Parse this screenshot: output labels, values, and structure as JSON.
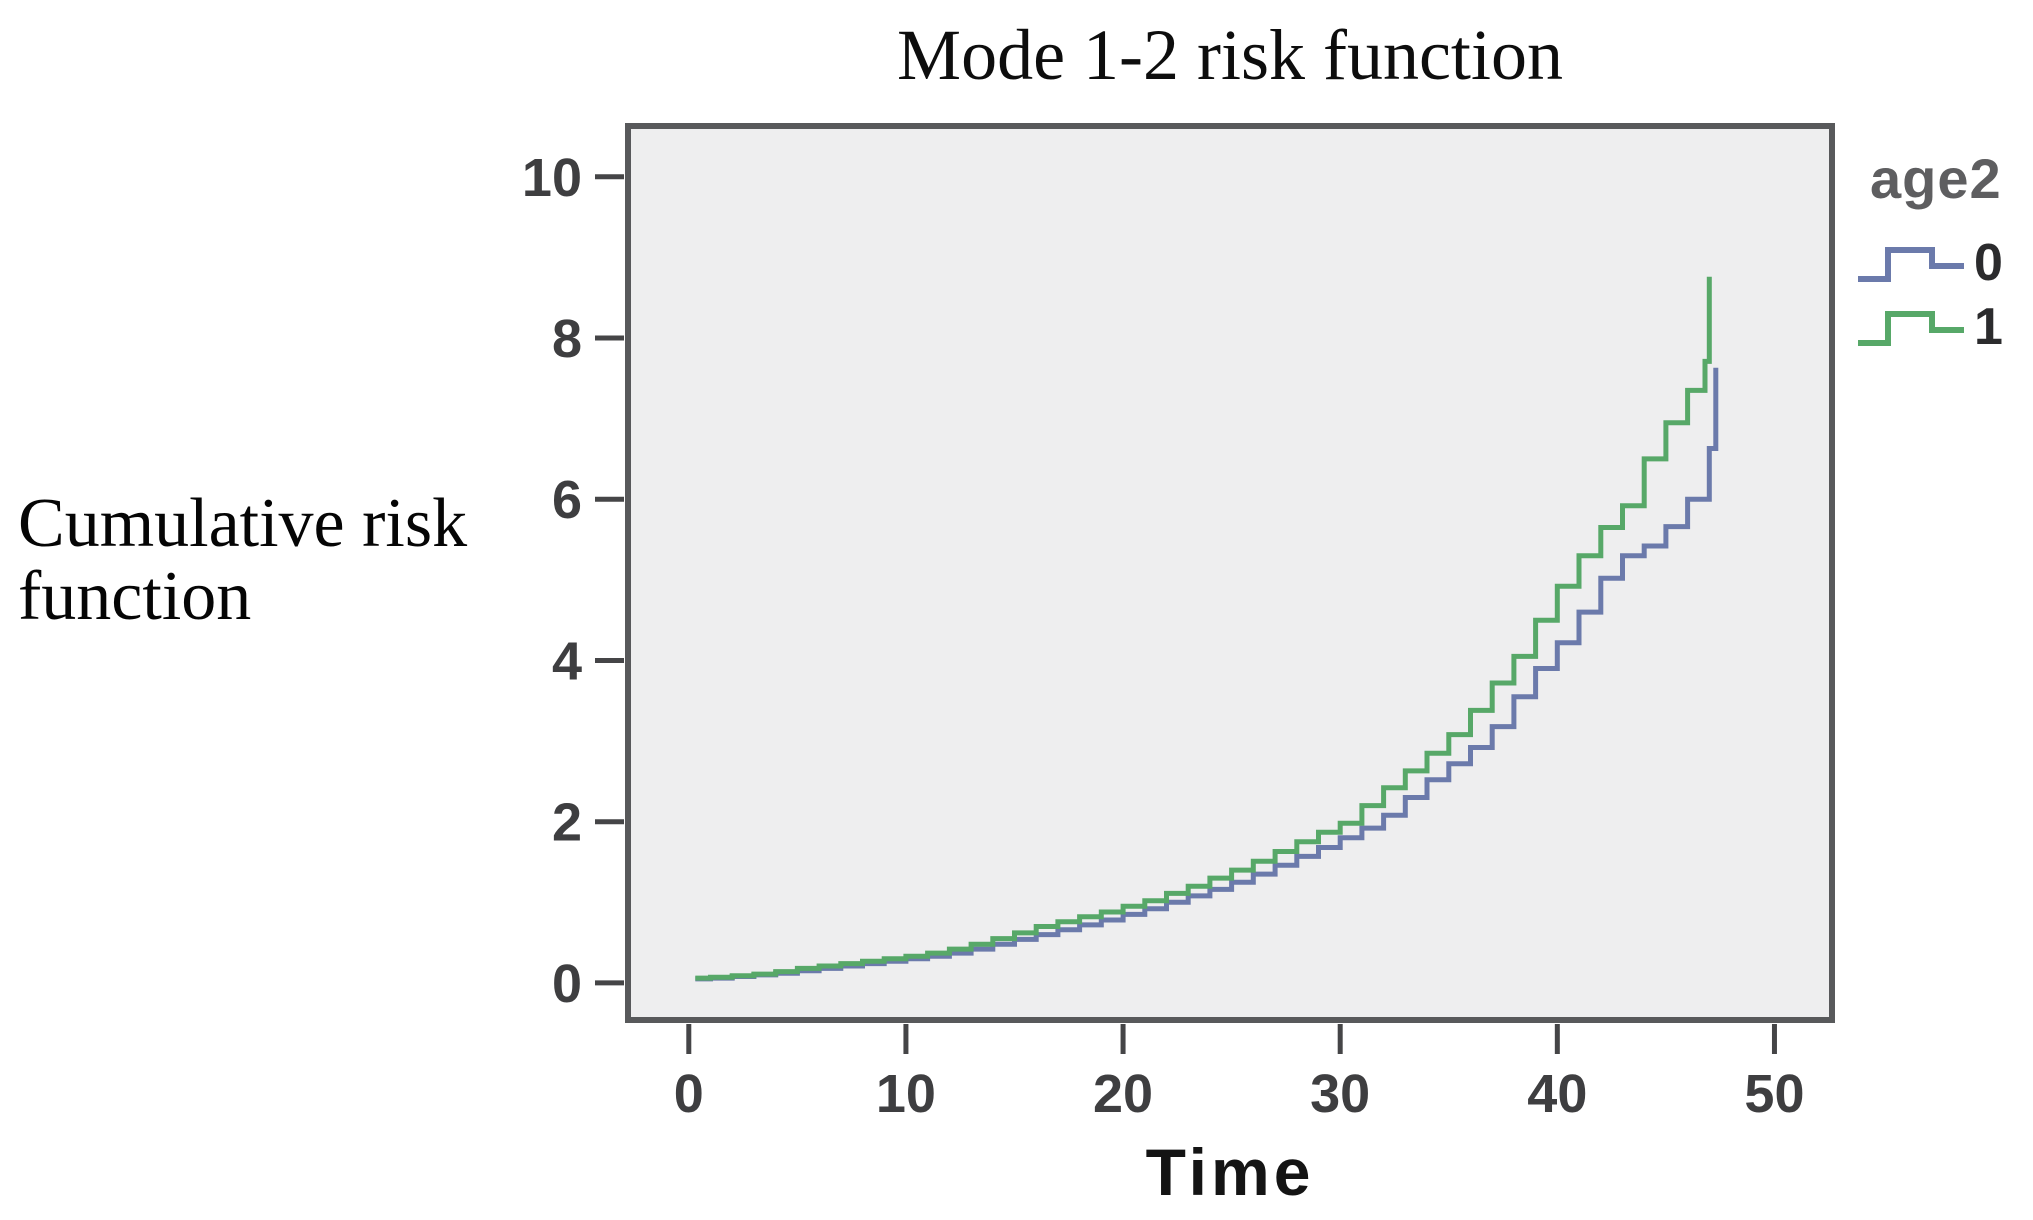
{
  "header": {
    "title": "Mode 1-2 risk function"
  },
  "axes": {
    "x": {
      "label": "Time"
    },
    "y": {
      "label_line1": "Cumulative risk",
      "label_line2": "function"
    }
  },
  "legend": {
    "title": "age2",
    "entries": [
      {
        "label": "0",
        "color": "#6b7aab"
      },
      {
        "label": "1",
        "color": "#57a868"
      }
    ]
  },
  "colors": {
    "plot_bg": "#eeeeef",
    "plot_border": "#58595b",
    "tick": "#454547",
    "tick_label": "#3e3e40",
    "series_blue": "#6b7aab",
    "series_green": "#57a868"
  },
  "chart_data": {
    "type": "line",
    "subtype": "step",
    "title": "Mode 1-2 risk function",
    "xlabel": "Time",
    "ylabel": "Cumulative risk function",
    "legend_title": "age2",
    "legend_position": "right",
    "grid": false,
    "x_ticks": [
      0,
      10,
      20,
      30,
      40,
      50
    ],
    "y_ticks": [
      0,
      2,
      4,
      6,
      8,
      10
    ],
    "xlim": [
      -2.8,
      52.65
    ],
    "ylim": [
      -0.46,
      10.63
    ],
    "series": [
      {
        "name": "0",
        "color": "#6b7aab",
        "t": [
          0.3,
          1,
          2,
          3,
          4,
          5,
          6,
          7,
          8,
          9,
          10,
          11,
          12,
          13,
          14,
          15,
          16,
          17,
          18,
          19,
          20,
          21,
          22,
          23,
          24,
          25,
          26,
          27,
          28,
          29,
          30,
          31,
          32,
          33,
          34,
          35,
          36,
          37,
          38,
          39,
          40,
          41,
          42,
          43,
          44,
          45,
          46,
          47,
          47.3
        ],
        "y": [
          0.05,
          0.06,
          0.08,
          0.1,
          0.12,
          0.15,
          0.18,
          0.21,
          0.24,
          0.27,
          0.3,
          0.33,
          0.37,
          0.42,
          0.48,
          0.54,
          0.6,
          0.66,
          0.72,
          0.78,
          0.85,
          0.92,
          1.0,
          1.08,
          1.16,
          1.25,
          1.35,
          1.46,
          1.57,
          1.68,
          1.8,
          1.92,
          2.08,
          2.3,
          2.52,
          2.72,
          2.92,
          3.18,
          3.55,
          3.9,
          4.22,
          4.6,
          5.02,
          5.3,
          5.42,
          5.66,
          6.0,
          6.63,
          7.63
        ]
      },
      {
        "name": "1",
        "color": "#57a868",
        "t": [
          0.3,
          1,
          2,
          3,
          4,
          5,
          6,
          7,
          8,
          9,
          10,
          11,
          12,
          13,
          14,
          15,
          16,
          17,
          18,
          19,
          20,
          21,
          22,
          23,
          24,
          25,
          26,
          27,
          28,
          29,
          30,
          31,
          32,
          33,
          34,
          35,
          36,
          37,
          38,
          39,
          40,
          41,
          42,
          43,
          44,
          45,
          46,
          46.8,
          47
        ],
        "y": [
          0.06,
          0.07,
          0.09,
          0.11,
          0.14,
          0.18,
          0.21,
          0.24,
          0.27,
          0.3,
          0.33,
          0.37,
          0.42,
          0.48,
          0.55,
          0.62,
          0.7,
          0.76,
          0.82,
          0.88,
          0.95,
          1.02,
          1.11,
          1.2,
          1.3,
          1.4,
          1.51,
          1.63,
          1.75,
          1.87,
          1.98,
          2.2,
          2.42,
          2.63,
          2.85,
          3.08,
          3.38,
          3.72,
          4.05,
          4.5,
          4.92,
          5.3,
          5.65,
          5.92,
          6.5,
          6.95,
          7.35,
          7.71,
          8.76
        ]
      }
    ]
  }
}
